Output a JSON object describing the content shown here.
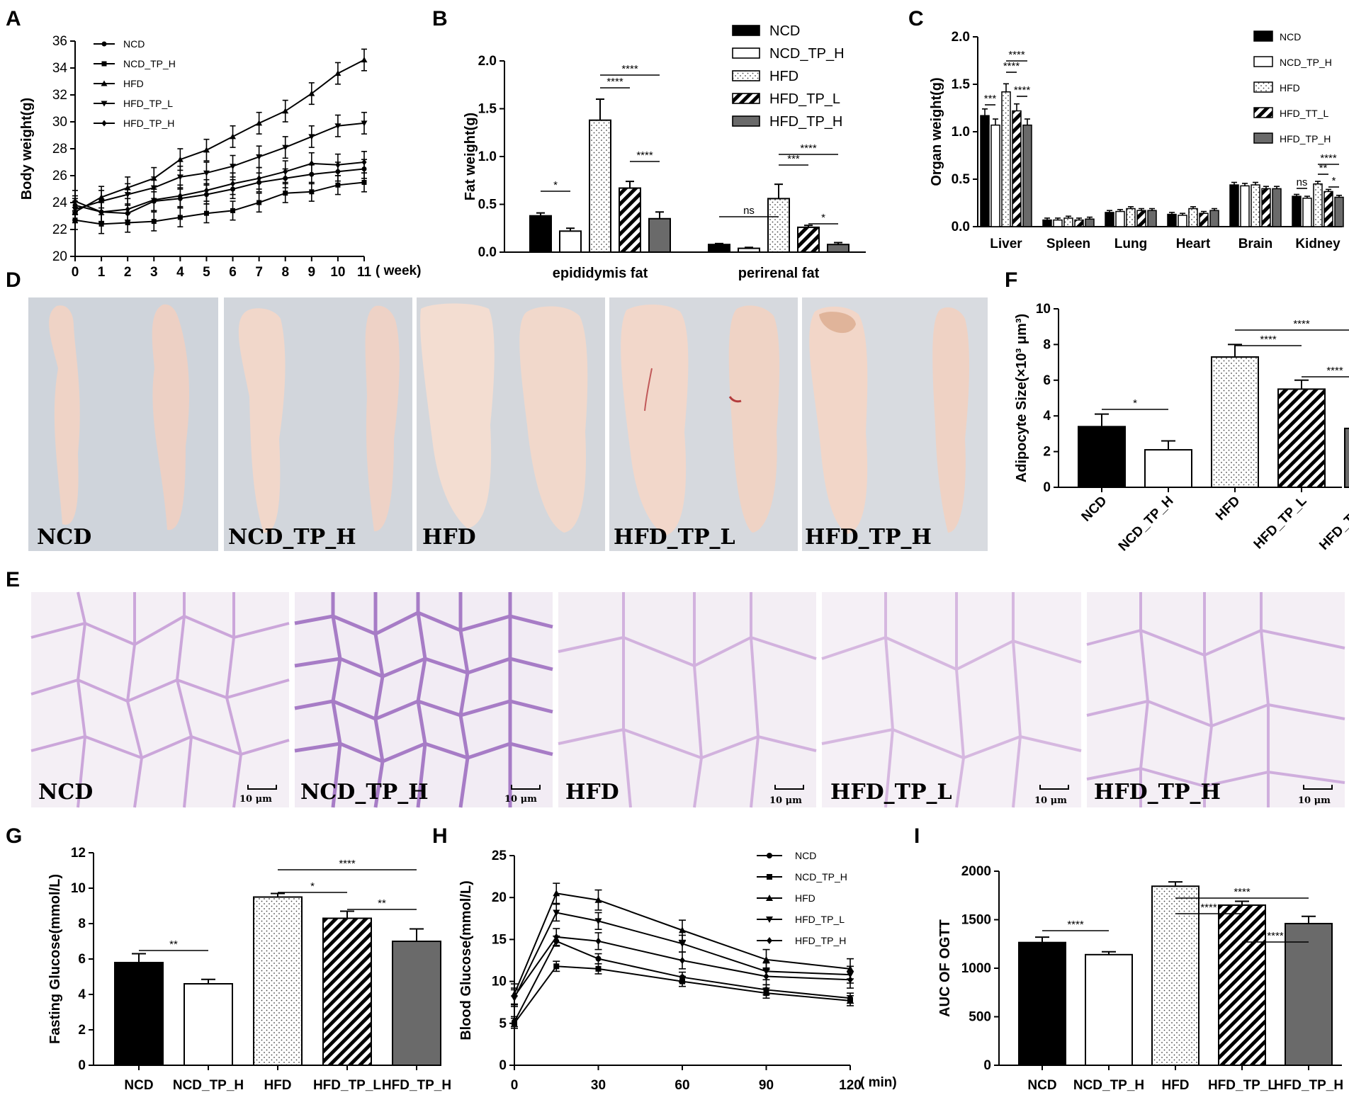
{
  "panels": {
    "a": "A",
    "b": "B",
    "c": "C",
    "d": "D",
    "e": "E",
    "f": "F",
    "g": "G",
    "h": "H",
    "i": "I"
  },
  "groups": [
    "NCD",
    "NCD_TP_H",
    "HFD",
    "HFD_TP_L",
    "HFD_TP_H"
  ],
  "photo_labels_d": [
    "NCD",
    "NCD_TP_H",
    "HFD",
    "HFD_TP_L",
    "HFD_TP_H"
  ],
  "photo_labels_e": [
    "NCD",
    "NCD_TP_H",
    "HFD",
    "HFD_TP_L",
    "HFD_TP_H"
  ],
  "scale_bar": "10 μm",
  "colors": {
    "black": "#000000",
    "white": "#ffffff",
    "gray": "#6a6a6a",
    "tissue_bg": "#d2d6dd",
    "fat": "#f0d6cc",
    "histo_bg": "#f3eef4",
    "histo_line": "#c9a3d6",
    "histo_nuc": "#5a2a9a"
  },
  "chart_data": [
    {
      "id": "A",
      "type": "line",
      "ylabel": "Body weight(g)",
      "xlabel": "( week)",
      "x": [
        0,
        1,
        2,
        3,
        4,
        5,
        6,
        7,
        8,
        9,
        10,
        11
      ],
      "ylim": [
        20,
        36
      ],
      "yticks": [
        20,
        22,
        24,
        26,
        28,
        30,
        32,
        34,
        36
      ],
      "series": [
        {
          "name": "NCD",
          "marker": "circle",
          "values": [
            23.8,
            23.3,
            23.2,
            24.1,
            24.3,
            24.6,
            25.0,
            25.5,
            25.8,
            26.1,
            26.3,
            26.5
          ],
          "err": 0.7
        },
        {
          "name": "NCD_TP_H",
          "marker": "square",
          "values": [
            22.7,
            22.4,
            22.5,
            22.6,
            22.9,
            23.2,
            23.4,
            24.0,
            24.7,
            24.8,
            25.3,
            25.5
          ],
          "err": 0.7
        },
        {
          "name": "HFD",
          "marker": "triangle",
          "values": [
            23.3,
            24.4,
            25.1,
            25.8,
            27.2,
            27.9,
            28.9,
            29.9,
            30.8,
            32.1,
            33.6,
            34.6
          ],
          "err": 0.8
        },
        {
          "name": "HFD_TP_L",
          "marker": "triangle-down",
          "values": [
            23.5,
            24.1,
            24.6,
            25.1,
            25.9,
            26.2,
            26.7,
            27.4,
            28.1,
            28.9,
            29.7,
            29.9
          ],
          "err": 0.8
        },
        {
          "name": "HFD_TP_H",
          "marker": "diamond",
          "values": [
            24.1,
            23.3,
            23.5,
            24.2,
            24.5,
            24.9,
            25.4,
            25.8,
            26.3,
            26.9,
            26.8,
            27.0
          ],
          "err": 0.8
        }
      ]
    },
    {
      "id": "B",
      "type": "bar",
      "ylabel": "Fat weight(g)",
      "categories": [
        "epididymis fat",
        "perirenal fat"
      ],
      "ylim": [
        0,
        2.0
      ],
      "yticks": [
        "0.0",
        "0.5",
        "1.0",
        "1.5",
        "2.0"
      ],
      "series": [
        {
          "name": "NCD",
          "values": [
            0.38,
            0.08
          ],
          "err": [
            0.03,
            0.01
          ]
        },
        {
          "name": "NCD_TP_H",
          "values": [
            0.22,
            0.04
          ],
          "err": [
            0.03,
            0.01
          ]
        },
        {
          "name": "HFD",
          "values": [
            1.38,
            0.56
          ],
          "err": [
            0.22,
            0.15
          ]
        },
        {
          "name": "HFD_TP_L",
          "values": [
            0.67,
            0.26
          ],
          "err": [
            0.07,
            0.02
          ]
        },
        {
          "name": "HFD_TP_H",
          "values": [
            0.35,
            0.08
          ],
          "err": [
            0.07,
            0.02
          ]
        }
      ],
      "annotations": [
        "*",
        "****",
        "****",
        "****",
        "ns",
        "***",
        "****",
        "*"
      ]
    },
    {
      "id": "C",
      "type": "bar",
      "ylabel": "Organ weight(g)",
      "categories": [
        "Liver",
        "Spleen",
        "Lung",
        "Heart",
        "Brain",
        "Kidney"
      ],
      "ylim": [
        0,
        2.0
      ],
      "yticks": [
        "0.0",
        "0.5",
        "1.0",
        "1.5",
        "2.0"
      ],
      "legend": [
        "NCD",
        "NCD_TP_H",
        "HFD",
        "HFD_TT_L",
        "HFD_TP_H"
      ],
      "series": [
        {
          "name": "NCD",
          "values": [
            1.17,
            0.07,
            0.15,
            0.13,
            0.44,
            0.32
          ]
        },
        {
          "name": "NCD_TP_H",
          "values": [
            1.07,
            0.07,
            0.16,
            0.12,
            0.43,
            0.3
          ]
        },
        {
          "name": "HFD",
          "values": [
            1.42,
            0.09,
            0.19,
            0.19,
            0.44,
            0.45
          ]
        },
        {
          "name": "HFD_TT_L",
          "values": [
            1.22,
            0.07,
            0.17,
            0.14,
            0.4,
            0.37
          ]
        },
        {
          "name": "HFD_TP_H",
          "values": [
            1.07,
            0.08,
            0.17,
            0.17,
            0.4,
            0.31
          ]
        }
      ],
      "annotations": [
        "***",
        "****",
        "****",
        "****",
        "ns",
        "****",
        "**",
        "*"
      ]
    },
    {
      "id": "F",
      "type": "bar",
      "ylabel": "Adipocyte Size(×10³ μm³)",
      "categories": [
        "NCD",
        "NCD_TP_H",
        "HFD",
        "HFD_TP_L",
        "HFD_TP_H"
      ],
      "values": [
        3.4,
        2.1,
        7.3,
        5.5,
        3.3
      ],
      "err": [
        0.7,
        0.5,
        0.7,
        0.5,
        0.4
      ],
      "ylim": [
        0,
        10
      ],
      "yticks": [
        0,
        2,
        4,
        6,
        8,
        10
      ],
      "annotations": [
        "*",
        "****",
        "****",
        "****"
      ]
    },
    {
      "id": "G",
      "type": "bar",
      "ylabel": "Fasting Glucose(mmol/L)",
      "categories": [
        "NCD",
        "NCD_TP_H",
        "HFD",
        "HFD_TP_L",
        "HFD_TP_H"
      ],
      "values": [
        5.8,
        4.6,
        9.5,
        8.3,
        7.0
      ],
      "err": [
        0.5,
        0.25,
        0.2,
        0.4,
        0.7
      ],
      "ylim": [
        0,
        12
      ],
      "yticks": [
        0,
        2,
        4,
        6,
        8,
        10,
        12
      ],
      "annotations": [
        "**",
        "****",
        "*",
        "**"
      ]
    },
    {
      "id": "H",
      "type": "line",
      "ylabel": "Blood Glucose(mmol/L)",
      "xlabel": "( min)",
      "x": [
        0,
        15,
        30,
        60,
        90,
        120
      ],
      "ylim": [
        0,
        25
      ],
      "yticks": [
        0,
        5,
        10,
        15,
        20,
        25
      ],
      "series": [
        {
          "name": "NCD",
          "marker": "circle",
          "values": [
            5.2,
            14.8,
            12.7,
            10.5,
            9.0,
            8.0
          ],
          "err": 0.6
        },
        {
          "name": "NCD_TP_H",
          "marker": "square",
          "values": [
            5.0,
            11.8,
            11.5,
            10.0,
            8.6,
            7.7
          ],
          "err": 0.6
        },
        {
          "name": "HFD",
          "marker": "triangle",
          "values": [
            8.5,
            20.5,
            19.7,
            16.1,
            12.6,
            11.5
          ],
          "err": 1.2
        },
        {
          "name": "HFD_TP_L",
          "marker": "triangle-down",
          "values": [
            8.0,
            18.2,
            17.2,
            14.5,
            11.2,
            10.8
          ],
          "err": 1.0
        },
        {
          "name": "HFD_TP_H",
          "marker": "diamond",
          "values": [
            8.2,
            15.3,
            14.8,
            12.5,
            10.6,
            10.2
          ],
          "err": 1.0
        }
      ]
    },
    {
      "id": "I",
      "type": "bar",
      "ylabel": "AUC OF OGTT",
      "categories": [
        "NCD",
        "NCD_TP_H",
        "HFD",
        "HFD_TP_L",
        "HFD_TP_H"
      ],
      "values": [
        1265,
        1140,
        1845,
        1650,
        1460
      ],
      "err": [
        55,
        30,
        45,
        40,
        75
      ],
      "ylim": [
        0,
        2000
      ],
      "yticks": [
        0,
        500,
        1000,
        1500,
        2000
      ],
      "annotations": [
        "****",
        "****",
        "****",
        "****"
      ]
    }
  ]
}
